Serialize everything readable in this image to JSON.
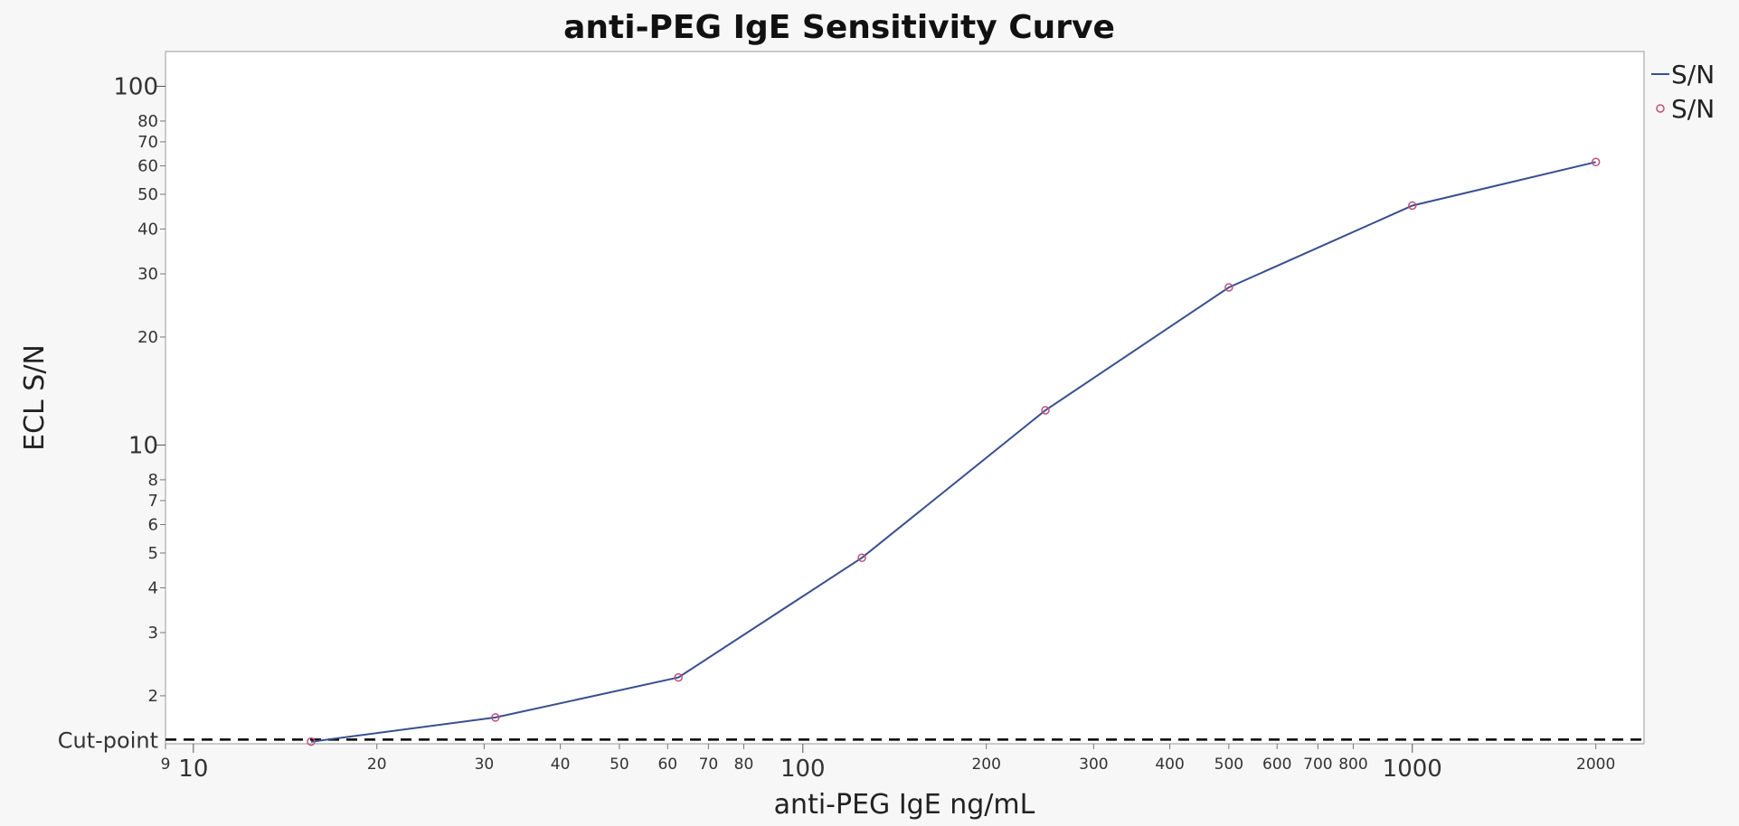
{
  "chart_data": {
    "type": "line",
    "title": "anti-PEG IgE Sensitivity Curve",
    "xlabel": "anti-PEG IgE ng/mL",
    "ylabel": "ECL S/N",
    "x_scale": "log",
    "y_scale": "log",
    "xlim": [
      9,
      2400
    ],
    "ylim": [
      1.47,
      125
    ],
    "x_ticks_major": [
      {
        "value": 10,
        "label": "10"
      },
      {
        "value": 100,
        "label": "100"
      },
      {
        "value": 1000,
        "label": "1000"
      }
    ],
    "x_ticks_minor": [
      {
        "value": 9,
        "label": "9"
      },
      {
        "value": 20,
        "label": "20"
      },
      {
        "value": 30,
        "label": "30"
      },
      {
        "value": 40,
        "label": "40"
      },
      {
        "value": 50,
        "label": "50"
      },
      {
        "value": 60,
        "label": "60"
      },
      {
        "value": 70,
        "label": "70"
      },
      {
        "value": 80,
        "label": "80"
      },
      {
        "value": 200,
        "label": "200"
      },
      {
        "value": 300,
        "label": "300"
      },
      {
        "value": 400,
        "label": "400"
      },
      {
        "value": 500,
        "label": "500"
      },
      {
        "value": 600,
        "label": "600"
      },
      {
        "value": 700,
        "label": "700"
      },
      {
        "value": 800,
        "label": "800"
      },
      {
        "value": 2000,
        "label": "2000"
      }
    ],
    "y_ticks_major": [
      {
        "value": 10,
        "label": "10"
      },
      {
        "value": 100,
        "label": "100"
      }
    ],
    "y_ticks_minor": [
      {
        "value": 2,
        "label": "2"
      },
      {
        "value": 3,
        "label": "3"
      },
      {
        "value": 4,
        "label": "4"
      },
      {
        "value": 5,
        "label": "5"
      },
      {
        "value": 6,
        "label": "6"
      },
      {
        "value": 7,
        "label": "7"
      },
      {
        "value": 8,
        "label": "8"
      },
      {
        "value": 20,
        "label": "20"
      },
      {
        "value": 30,
        "label": "30"
      },
      {
        "value": 40,
        "label": "40"
      },
      {
        "value": 50,
        "label": "50"
      },
      {
        "value": 60,
        "label": "60"
      },
      {
        "value": 70,
        "label": "70"
      },
      {
        "value": 80,
        "label": "80"
      }
    ],
    "cut_point": {
      "value": 1.51,
      "label": "Cut-point"
    },
    "series": [
      {
        "name": "S/N",
        "style": "line",
        "color": "#3a4f8f",
        "x": [
          15.6,
          31.3,
          62.5,
          125,
          250,
          500,
          1000,
          2000
        ],
        "y": [
          1.49,
          1.74,
          2.25,
          4.85,
          12.5,
          27.5,
          46.5,
          61.5
        ]
      },
      {
        "name": "S/N",
        "style": "markers",
        "color": "#c0507a",
        "x": [
          15.6,
          31.3,
          62.5,
          125,
          250,
          500,
          1000,
          2000
        ],
        "y": [
          1.49,
          1.74,
          2.25,
          4.85,
          12.5,
          27.5,
          46.5,
          61.5
        ]
      }
    ],
    "legend": {
      "position": "right-top",
      "entries": [
        "S/N",
        "S/N"
      ]
    },
    "grid": false
  }
}
